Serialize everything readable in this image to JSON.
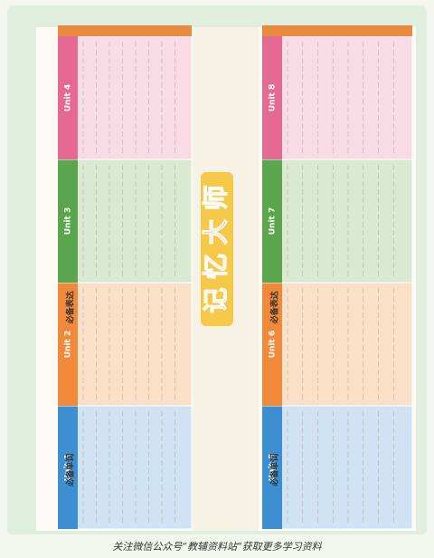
{
  "title": "记 忆 大 师",
  "footer": "关注微信公众号“教辅资料站”获取更多学习资料",
  "left_panel": {
    "headers": [
      "必备单词",
      "必备表达"
    ],
    "units": [
      "Unit 1",
      "Unit 2",
      "Unit 3",
      "Unit 4"
    ]
  },
  "right_panel": {
    "headers": [
      "必备单词",
      "必备表达"
    ],
    "units": [
      "Unit 5",
      "Unit 6",
      "Unit 7",
      "Unit 8"
    ]
  }
}
